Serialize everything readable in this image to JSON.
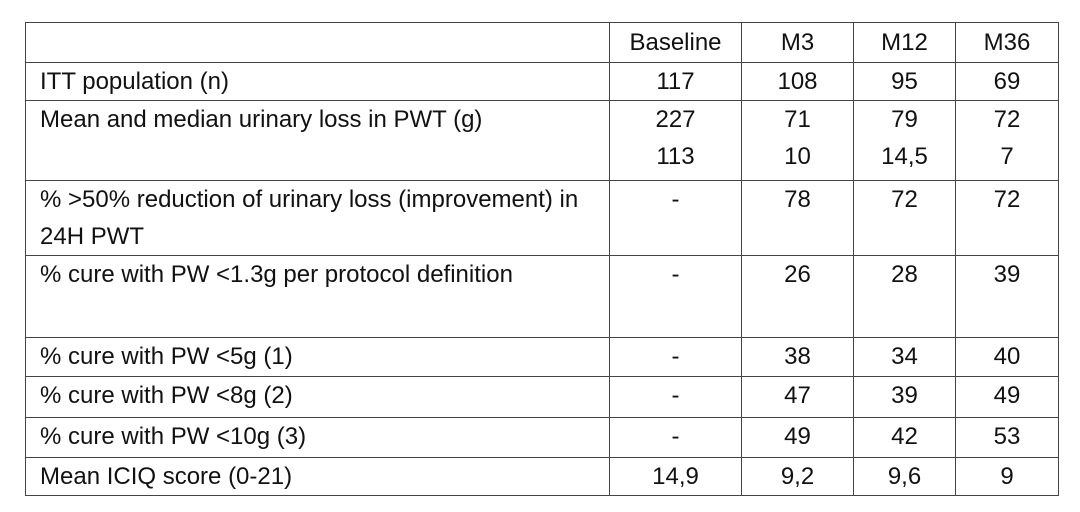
{
  "table": {
    "columns": [
      "Baseline",
      "M3",
      "M12",
      "M36"
    ],
    "rows": [
      {
        "label": "ITT population (n)",
        "values": [
          "117",
          "108",
          "95",
          "69"
        ]
      },
      {
        "label": "Mean and median urinary loss in PWT (g)",
        "values": [
          [
            "227",
            "113"
          ],
          [
            "71",
            "10"
          ],
          [
            "79",
            "14,5"
          ],
          [
            "72",
            "7"
          ]
        ]
      },
      {
        "label": "% >50% reduction of urinary loss (improvement) in 24H PWT",
        "values": [
          "-",
          "78",
          "72",
          "72"
        ]
      },
      {
        "label": "% cure with PW <1.3g per protocol definition",
        "values": [
          "-",
          "26",
          "28",
          "39"
        ]
      },
      {
        "label": "% cure with PW <5g (1)",
        "values": [
          "-",
          "38",
          "34",
          "40"
        ]
      },
      {
        "label": "% cure with PW <8g (2)",
        "values": [
          "-",
          "47",
          "39",
          "49"
        ]
      },
      {
        "label": "% cure with PW <10g (3)",
        "values": [
          "-",
          "49",
          "42",
          "53"
        ]
      },
      {
        "label": "Mean ICIQ score (0-21)",
        "values": [
          "14,9",
          "9,2",
          "9,6",
          "9"
        ]
      }
    ]
  }
}
